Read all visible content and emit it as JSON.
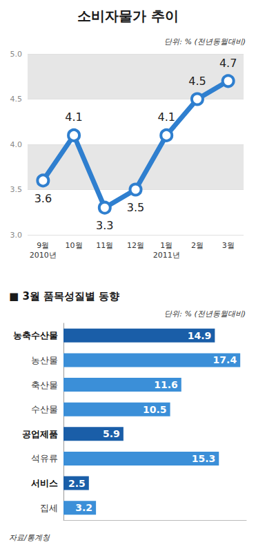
{
  "chart_data": [
    {
      "type": "line",
      "title": "소비자물가 추이",
      "subtitle": "단위: % (전년동월대비)",
      "categories": [
        "9월\n2010년",
        "10월",
        "11월",
        "12월",
        "1월\n2011년",
        "2월",
        "3월"
      ],
      "values": [
        3.6,
        4.1,
        3.3,
        3.5,
        4.1,
        4.5,
        4.7
      ],
      "color": "#2f7fcf",
      "ylim": [
        3.0,
        5.0
      ],
      "yticks": [
        {
          "value": 3.0,
          "label": "3.0"
        },
        {
          "value": 3.5,
          "label": "3.5"
        },
        {
          "value": 4.0,
          "label": "4.0"
        },
        {
          "value": 4.5,
          "label": "4.5"
        },
        {
          "value": 5.0,
          "label": "5.0"
        }
      ],
      "grid": true,
      "marker": "circle",
      "data_labels": true
    },
    {
      "type": "bar",
      "title": "■ 3월 품목성질별 동향",
      "subtitle": "단위: % (전년동월대비)",
      "source": "자료/통계청",
      "orientation": "horizontal",
      "categories": [
        "농축수산물",
        "농산물",
        "축산물",
        "수산물",
        "공업제품",
        "석유류",
        "서비스",
        "집세"
      ],
      "values": [
        14.9,
        17.4,
        11.6,
        10.5,
        5.9,
        15.3,
        2.5,
        3.2
      ],
      "colors": [
        "#1a5ea8",
        "#3b8fd8",
        "#3b8fd8",
        "#3b8fd8",
        "#1a5ea8",
        "#3b8fd8",
        "#1a5ea8",
        "#3b8fd8"
      ],
      "xlim": [
        0,
        18
      ],
      "tick_labels": "y",
      "data_labels": true
    }
  ]
}
